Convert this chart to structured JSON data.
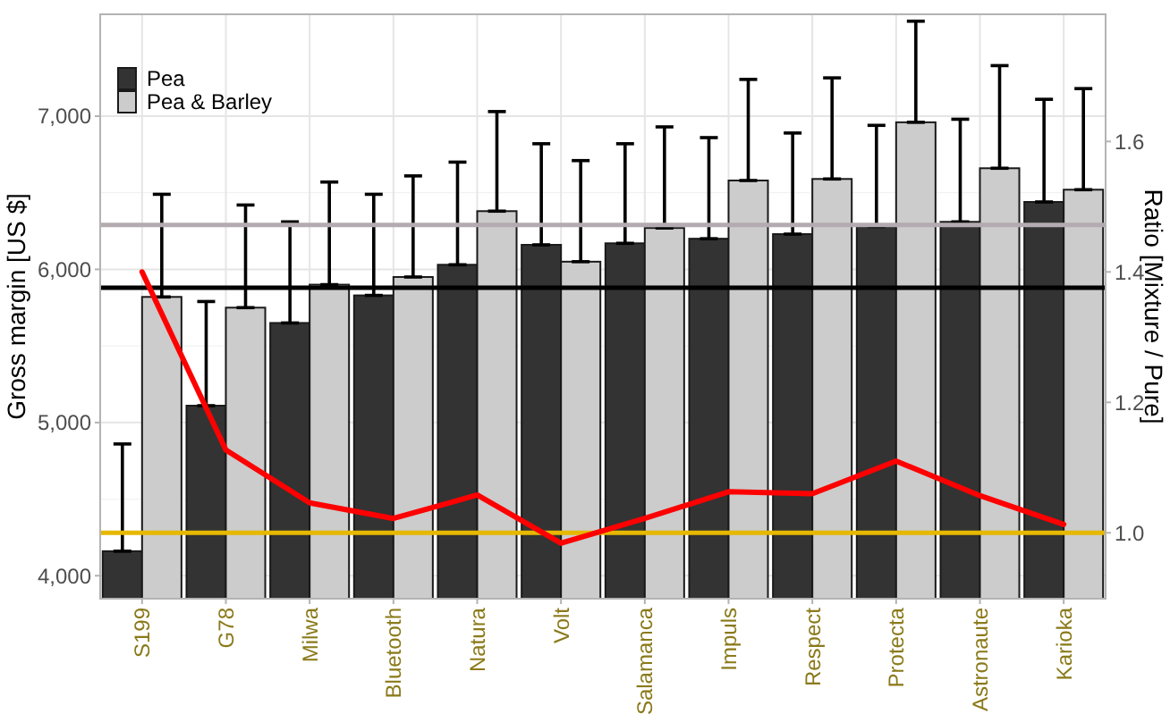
{
  "chart_data": {
    "type": "bar",
    "ylabel": "Gross margin [US $]",
    "y2label": "Ratio [Mixture / Pure]",
    "categories": [
      "S199",
      "G78",
      "Milwa",
      "Bluetooth",
      "Natura",
      "Volt",
      "Salamanca",
      "Impuls",
      "Respect",
      "Protecta",
      "Astronaute",
      "Karioka"
    ],
    "series": [
      {
        "name": "Pea",
        "color": "#333333",
        "values": [
          4160,
          5110,
          5650,
          5830,
          6030,
          6160,
          6170,
          6200,
          6230,
          6280,
          6310,
          6440
        ],
        "errors": [
          [
            4160,
            4860
          ],
          [
            5110,
            5790
          ],
          [
            5650,
            6310
          ],
          [
            5830,
            6490
          ],
          [
            6030,
            6700
          ],
          [
            6160,
            6820
          ],
          [
            6170,
            6820
          ],
          [
            6200,
            6860
          ],
          [
            6230,
            6890
          ],
          [
            6280,
            6940
          ],
          [
            6310,
            6980
          ],
          [
            6440,
            7110
          ]
        ]
      },
      {
        "name": "Pea & Barley",
        "color": "#cccccc",
        "values": [
          5820,
          5750,
          5900,
          5950,
          6380,
          6050,
          6270,
          6580,
          6590,
          6960,
          6660,
          6520
        ],
        "errors": [
          [
            5820,
            6490
          ],
          [
            5750,
            6420
          ],
          [
            5900,
            6570
          ],
          [
            5950,
            6610
          ],
          [
            6380,
            7030
          ],
          [
            6050,
            6710
          ],
          [
            6270,
            6930
          ],
          [
            6580,
            7240
          ],
          [
            6590,
            7250
          ],
          [
            6960,
            7620
          ],
          [
            6660,
            7330
          ],
          [
            6520,
            7180
          ]
        ]
      },
      {
        "type": "line",
        "axis": "y2",
        "color": "#ff0000",
        "values": [
          1.4,
          1.127,
          1.046,
          1.022,
          1.058,
          0.984,
          1.022,
          1.063,
          1.06,
          1.11,
          1.057,
          1.013
        ]
      }
    ],
    "ylim": [
      3850,
      7665
    ],
    "yticks": [
      {
        "value": 4000,
        "label": "4,000"
      },
      {
        "value": 5000,
        "label": "5,000"
      },
      {
        "value": 6000,
        "label": "6,000"
      },
      {
        "value": 7000,
        "label": "7,000"
      }
    ],
    "y2lim": [
      0.899,
      1.795
    ],
    "y2ticks": [
      {
        "value": 1.0,
        "label": "1.0"
      },
      {
        "value": 1.2,
        "label": "1.2"
      },
      {
        "value": 1.4,
        "label": "1.4"
      },
      {
        "value": 1.6,
        "label": "1.6"
      }
    ],
    "ref_lines": [
      {
        "axis": "y",
        "value": 6290,
        "color": "#b3abb0"
      },
      {
        "axis": "y",
        "value": 5880,
        "color": "#000000"
      },
      {
        "axis": "y2",
        "value": 1.0,
        "color": "#e6b800"
      }
    ],
    "grid": true,
    "legend": "top left"
  }
}
